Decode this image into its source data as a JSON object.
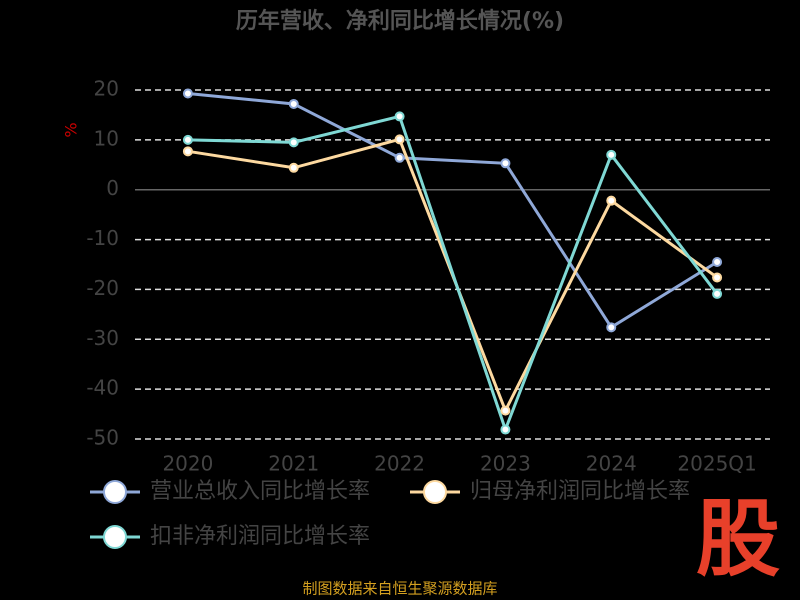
{
  "chart_data": {
    "type": "line",
    "title": "历年营收、净利同比增长情况(%)",
    "y_label": "%",
    "categories": [
      "2020",
      "2021",
      "2022",
      "2023",
      "2024",
      "2025Q1"
    ],
    "series": [
      {
        "name": "营业总收入同比增长率",
        "color": "#8fa8d8",
        "values": [
          19.3,
          17.2,
          6.4,
          5.3,
          -27.6,
          -14.5
        ]
      },
      {
        "name": "归母净利润同比增长率",
        "color": "#fdd9a0",
        "values": [
          7.7,
          4.4,
          10.1,
          -44.3,
          -2.2,
          -17.6
        ]
      },
      {
        "name": "扣非净利润同比增长率",
        "color": "#7fd8d4",
        "values": [
          10.0,
          9.5,
          14.7,
          -48.1,
          7.0,
          -20.9
        ]
      }
    ],
    "ylim": [
      -50,
      20
    ],
    "yticks": [
      -50,
      -40,
      -30,
      -20,
      -10,
      0,
      10,
      20
    ],
    "grid": true,
    "source": "制图数据来自恒生聚源数据库",
    "logo": "股"
  }
}
